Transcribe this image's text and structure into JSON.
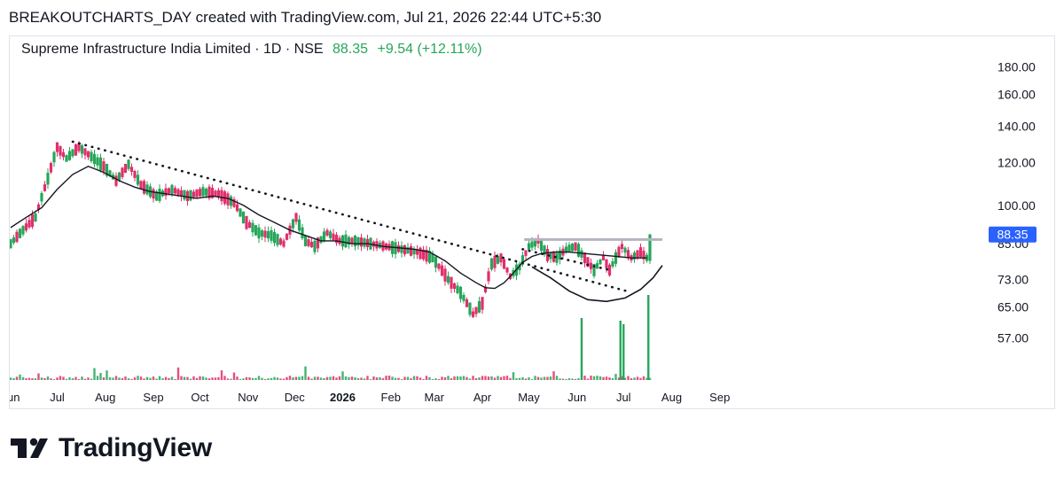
{
  "caption": "BREAKOUTCHARTS_DAY created with TradingView.com, Jul 21, 2026 22:44 UTC+5:30",
  "legend": {
    "symbol": "Supreme Infrastructure India Limited · 1D · NSE",
    "price": "88.35",
    "change": "+9.54 (+12.11%)"
  },
  "brand": {
    "name": "TradingView",
    "icon": "tradingview-logo-icon"
  },
  "colors": {
    "up": "#26a659",
    "down": "#e0306b",
    "text": "#131722",
    "price_badge": "#2962ff",
    "resistance": "#b2b5be"
  },
  "chart_data": {
    "type": "candlestick",
    "scale": "log",
    "ylim": [
      50,
      190
    ],
    "yticks": [
      180,
      160,
      140,
      120,
      100,
      85,
      73,
      65,
      57
    ],
    "ytick_labels": [
      "180.00",
      "160.00",
      "140.00",
      "120.00",
      "100.00",
      "85.00",
      "73.00",
      "65.00",
      "57.00"
    ],
    "xticks": [
      {
        "label": "Jun",
        "day": 0
      },
      {
        "label": "Jul",
        "day": 30
      },
      {
        "label": "Aug",
        "day": 61
      },
      {
        "label": "Sep",
        "day": 92
      },
      {
        "label": "Oct",
        "day": 122
      },
      {
        "label": "Nov",
        "day": 153
      },
      {
        "label": "Dec",
        "day": 183
      },
      {
        "label": "2026",
        "day": 214
      },
      {
        "label": "Feb",
        "day": 245
      },
      {
        "label": "Mar",
        "day": 273
      },
      {
        "label": "Apr",
        "day": 304
      },
      {
        "label": "May",
        "day": 334
      },
      {
        "label": "Jun",
        "day": 365
      },
      {
        "label": "Jul",
        "day": 395
      },
      {
        "label": "Aug",
        "day": 426
      },
      {
        "label": "Sep",
        "day": 457
      }
    ],
    "last_price": 88.35,
    "last_price_label": "88.35",
    "price_path": [
      [
        0,
        85
      ],
      [
        8,
        90
      ],
      [
        16,
        95
      ],
      [
        24,
        112
      ],
      [
        30,
        128
      ],
      [
        36,
        122
      ],
      [
        44,
        128
      ],
      [
        52,
        123
      ],
      [
        60,
        118
      ],
      [
        68,
        111
      ],
      [
        76,
        119
      ],
      [
        84,
        109
      ],
      [
        94,
        104
      ],
      [
        104,
        107
      ],
      [
        114,
        104
      ],
      [
        124,
        106
      ],
      [
        134,
        105
      ],
      [
        144,
        101
      ],
      [
        152,
        93
      ],
      [
        160,
        89
      ],
      [
        168,
        88
      ],
      [
        176,
        85
      ],
      [
        184,
        95
      ],
      [
        190,
        86
      ],
      [
        196,
        84
      ],
      [
        204,
        89
      ],
      [
        212,
        86
      ],
      [
        222,
        86
      ],
      [
        232,
        85
      ],
      [
        242,
        84
      ],
      [
        252,
        83
      ],
      [
        262,
        82
      ],
      [
        272,
        80
      ],
      [
        282,
        73
      ],
      [
        290,
        69
      ],
      [
        298,
        63
      ],
      [
        304,
        66
      ],
      [
        310,
        78
      ],
      [
        316,
        80
      ],
      [
        322,
        74
      ],
      [
        328,
        77
      ],
      [
        334,
        84
      ],
      [
        340,
        86
      ],
      [
        346,
        81
      ],
      [
        352,
        80
      ],
      [
        358,
        83
      ],
      [
        364,
        84
      ],
      [
        370,
        80
      ],
      [
        376,
        76
      ],
      [
        382,
        80
      ],
      [
        386,
        76
      ],
      [
        390,
        80
      ],
      [
        394,
        84
      ],
      [
        400,
        80
      ],
      [
        406,
        82
      ],
      [
        410,
        80
      ],
      [
        412,
        81
      ]
    ],
    "moving_average": [
      [
        0,
        91
      ],
      [
        10,
        95
      ],
      [
        20,
        99
      ],
      [
        30,
        107
      ],
      [
        40,
        114
      ],
      [
        50,
        118
      ],
      [
        60,
        115
      ],
      [
        70,
        111
      ],
      [
        80,
        108
      ],
      [
        90,
        106
      ],
      [
        100,
        105
      ],
      [
        110,
        104
      ],
      [
        120,
        103
      ],
      [
        130,
        104
      ],
      [
        140,
        103
      ],
      [
        150,
        100
      ],
      [
        160,
        96
      ],
      [
        170,
        93
      ],
      [
        180,
        90
      ],
      [
        190,
        88
      ],
      [
        200,
        86
      ],
      [
        210,
        86
      ],
      [
        220,
        85
      ],
      [
        230,
        85
      ],
      [
        240,
        84
      ],
      [
        250,
        83.5
      ],
      [
        260,
        83
      ],
      [
        270,
        82
      ],
      [
        280,
        79
      ],
      [
        290,
        75
      ],
      [
        300,
        72
      ],
      [
        306,
        70.5
      ],
      [
        312,
        70.3
      ],
      [
        318,
        72
      ],
      [
        324,
        75
      ],
      [
        330,
        78.5
      ],
      [
        336,
        80.5
      ],
      [
        342,
        81.5
      ],
      [
        350,
        82
      ],
      [
        360,
        82
      ],
      [
        370,
        81.5
      ],
      [
        380,
        81
      ],
      [
        390,
        80.5
      ],
      [
        400,
        80
      ],
      [
        410,
        80
      ]
    ],
    "trendline": {
      "from": [
        40,
        131
      ],
      "to": [
        397,
        69.5
      ]
    },
    "resistance": {
      "from": [
        331,
        86.5
      ],
      "to": [
        420,
        86.5
      ]
    },
    "cup_arc": [
      [
        336,
        77
      ],
      [
        348,
        73.5
      ],
      [
        360,
        69.5
      ],
      [
        372,
        67
      ],
      [
        384,
        66.5
      ],
      [
        396,
        67.5
      ],
      [
        406,
        70
      ],
      [
        414,
        73.5
      ],
      [
        420,
        77.5
      ]
    ],
    "volume": [
      [
        368,
        20
      ],
      [
        393,
        20
      ],
      [
        395,
        20
      ],
      [
        411,
        21
      ]
    ]
  }
}
